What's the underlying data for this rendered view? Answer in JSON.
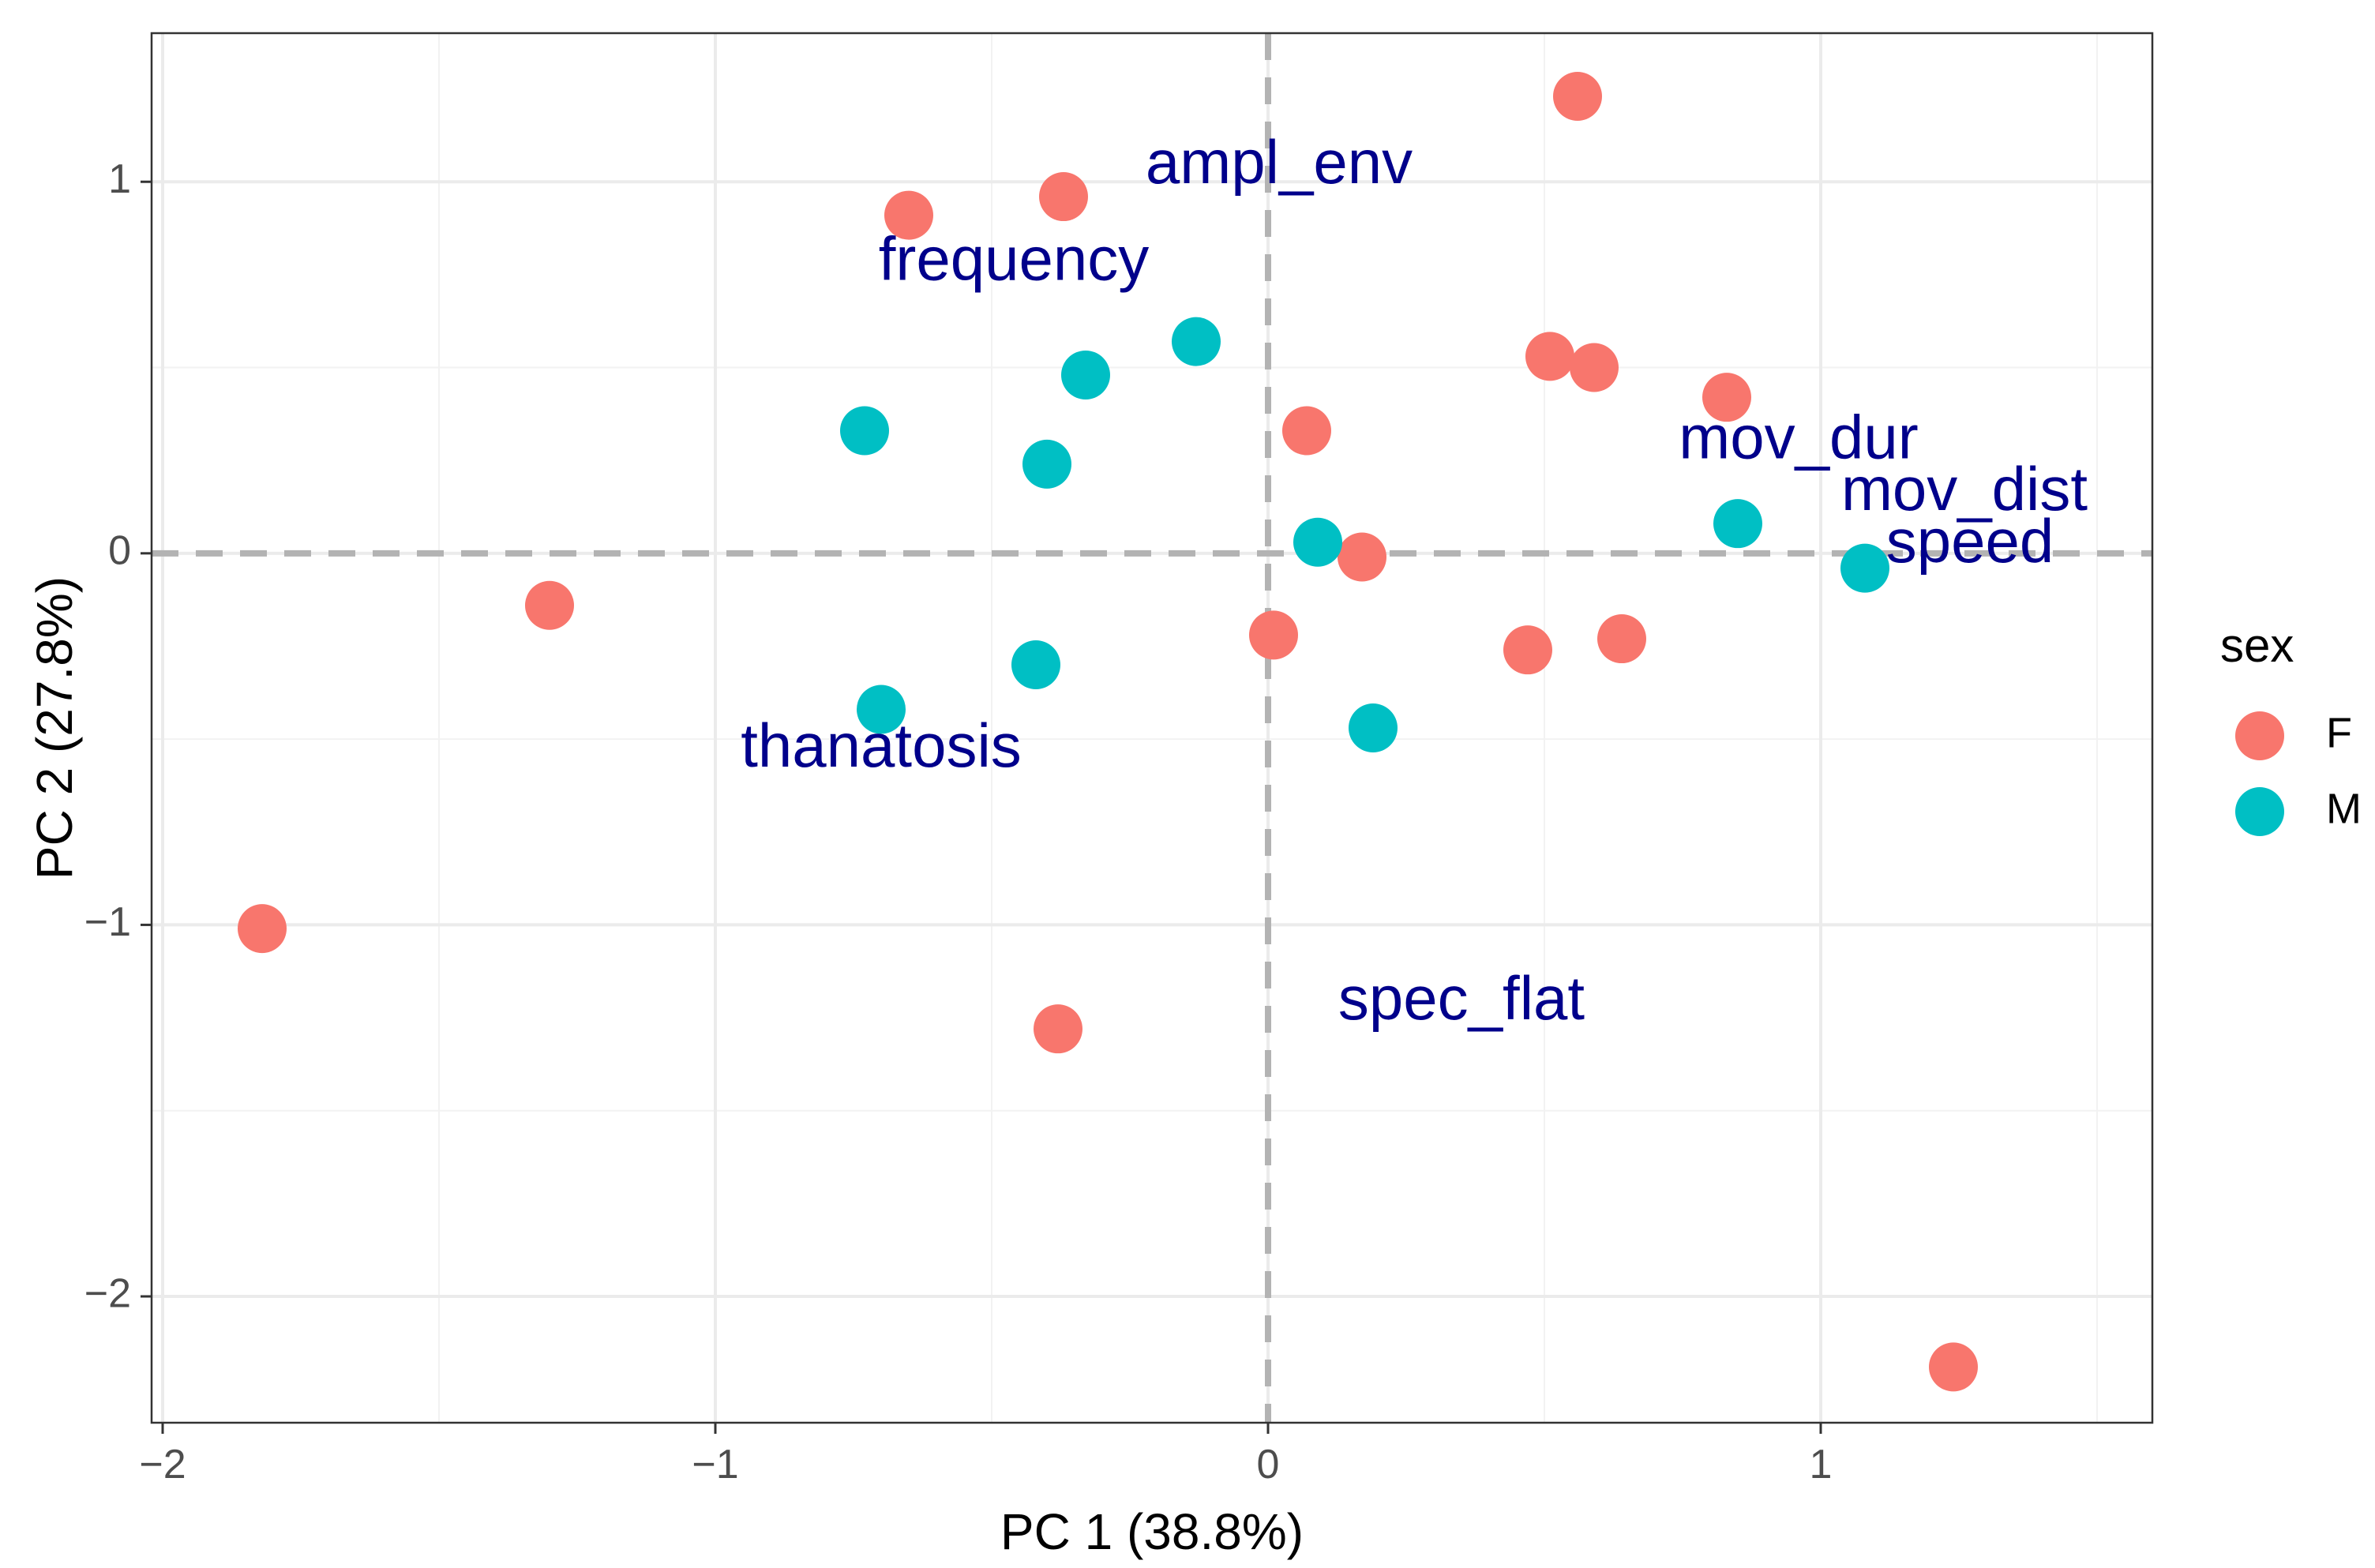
{
  "chart_data": {
    "type": "scatter",
    "title": "",
    "xlabel": "PC 1 (38.8%)",
    "ylabel": "PC 2 (27.8%)",
    "xlim": [
      -2.02,
      1.6
    ],
    "ylim": [
      -2.34,
      1.4
    ],
    "x_ticks": [
      -2,
      -1,
      0,
      1
    ],
    "x_tick_labels": [
      "−2",
      "−1",
      "0",
      "1"
    ],
    "y_ticks": [
      1,
      0,
      -1,
      -2
    ],
    "y_tick_labels": [
      "1",
      "0",
      "−1",
      "−2"
    ],
    "x_minor_gridlines": [
      -1.5,
      -0.5,
      0.5,
      1.5
    ],
    "y_minor_gridlines": [
      0.5,
      -0.5,
      -1.5
    ],
    "reference_lines": {
      "x": 0,
      "y": 0
    },
    "grid": true,
    "legend": {
      "title": "sex",
      "position": "right",
      "entries": [
        {
          "label": "F",
          "color": "#F8766D"
        },
        {
          "label": "M",
          "color": "#00BFC4"
        }
      ]
    },
    "series": [
      {
        "name": "F",
        "color": "#F8766D",
        "points": [
          {
            "x": 0.56,
            "y": 1.23
          },
          {
            "x": -0.65,
            "y": 0.91
          },
          {
            "x": -0.37,
            "y": 0.96
          },
          {
            "x": 0.51,
            "y": 0.53
          },
          {
            "x": 0.59,
            "y": 0.5
          },
          {
            "x": 0.83,
            "y": 0.42
          },
          {
            "x": 0.07,
            "y": 0.33
          },
          {
            "x": 0.17,
            "y": -0.01
          },
          {
            "x": -1.3,
            "y": -0.14
          },
          {
            "x": 0.01,
            "y": -0.22
          },
          {
            "x": 0.47,
            "y": -0.26
          },
          {
            "x": 0.64,
            "y": -0.23
          },
          {
            "x": -1.82,
            "y": -1.01
          },
          {
            "x": -0.38,
            "y": -1.28
          },
          {
            "x": 1.24,
            "y": -2.19
          }
        ]
      },
      {
        "name": "M",
        "color": "#00BFC4",
        "points": [
          {
            "x": -0.13,
            "y": 0.57
          },
          {
            "x": -0.33,
            "y": 0.48
          },
          {
            "x": -0.73,
            "y": 0.33
          },
          {
            "x": -0.4,
            "y": 0.24
          },
          {
            "x": 0.09,
            "y": 0.03
          },
          {
            "x": 0.85,
            "y": 0.08
          },
          {
            "x": 1.08,
            "y": -0.04
          },
          {
            "x": -0.42,
            "y": -0.3
          },
          {
            "x": -0.7,
            "y": -0.42
          },
          {
            "x": 0.19,
            "y": -0.47
          }
        ]
      }
    ],
    "variable_labels": {
      "color": "#00008B",
      "items": [
        {
          "label": "ampl_env",
          "x": 0.02,
          "y": 1.04
        },
        {
          "label": "frequency",
          "x": -0.46,
          "y": 0.78
        },
        {
          "label": "mov_dur",
          "x": 0.96,
          "y": 0.3
        },
        {
          "label": "mov_dist",
          "x": 1.26,
          "y": 0.16
        },
        {
          "label": "speed",
          "x": 1.27,
          "y": 0.02
        },
        {
          "label": "thanatosis",
          "x": -0.7,
          "y": -0.53
        },
        {
          "label": "spec_flat",
          "x": 0.35,
          "y": -1.21
        }
      ]
    }
  }
}
